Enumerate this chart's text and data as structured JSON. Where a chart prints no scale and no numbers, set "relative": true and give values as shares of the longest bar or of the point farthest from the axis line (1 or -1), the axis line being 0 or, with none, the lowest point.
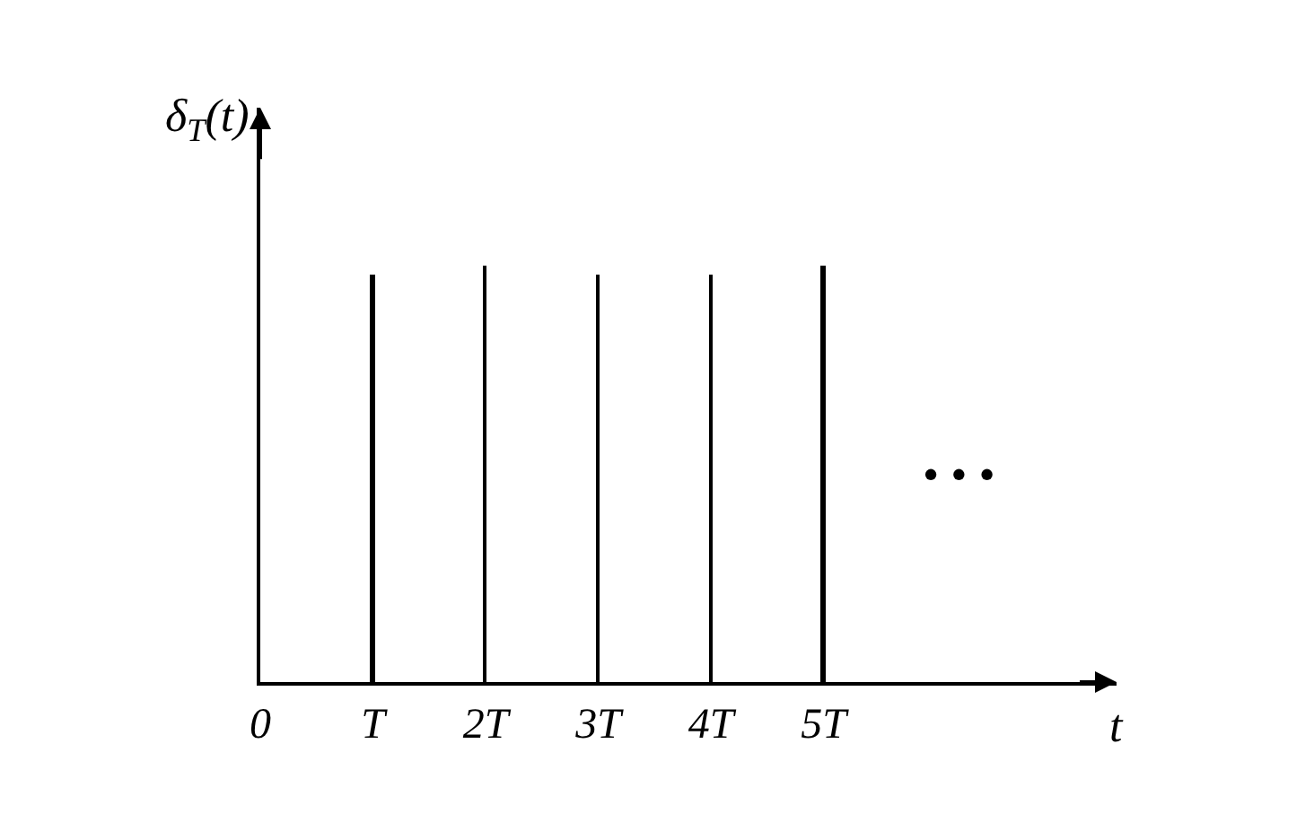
{
  "chart_data": {
    "type": "bar",
    "relative": true,
    "x": [
      1,
      2,
      3,
      4,
      5
    ],
    "values": [
      0.98,
      1,
      0.98,
      0.98,
      1
    ],
    "color": "#000000",
    "xlim": [
      0,
      7.6
    ],
    "xticks": [
      {
        "value": 0,
        "label": "0"
      },
      {
        "value": 1,
        "label": "T"
      },
      {
        "value": 2,
        "label": "2T"
      },
      {
        "value": 3,
        "label": "3T"
      },
      {
        "value": 4,
        "label": "4T"
      },
      {
        "value": 5,
        "label": "5T"
      }
    ],
    "xlabel": "t",
    "ylabel": "δ$_{T}$(t)",
    "annotations": [
      "• • •"
    ],
    "legend": false
  }
}
